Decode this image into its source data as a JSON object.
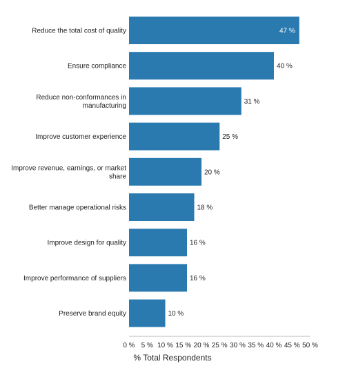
{
  "chart_data": {
    "type": "bar",
    "orientation": "horizontal",
    "categories": [
      "Reduce the total cost of quality",
      "Ensure compliance",
      "Reduce non-conformances in manufacturing",
      "Improve customer experience",
      "Improve revenue, earnings, or market share",
      "Better manage operational risks",
      "Improve design for quality",
      "Improve performance of suppliers",
      "Preserve brand equity"
    ],
    "values": [
      47,
      40,
      31,
      25,
      20,
      18,
      16,
      16,
      10
    ],
    "value_labels": [
      "47 %",
      "40 %",
      "31 %",
      "25 %",
      "20 %",
      "18 %",
      "16 %",
      "16 %",
      "10 %"
    ],
    "xlabel": "% Total Respondents",
    "xlim": [
      0,
      50
    ],
    "xticks": [
      0,
      5,
      10,
      15,
      20,
      25,
      30,
      35,
      40,
      45,
      50
    ],
    "xtick_labels": [
      "0 %",
      "5 %",
      "10 %",
      "15 %",
      "20 %",
      "25 %",
      "30 %",
      "35 %",
      "40 %",
      "45 %",
      "50 %"
    ],
    "grid": false,
    "legend": "none",
    "bar_color": "#2a7ab0"
  }
}
